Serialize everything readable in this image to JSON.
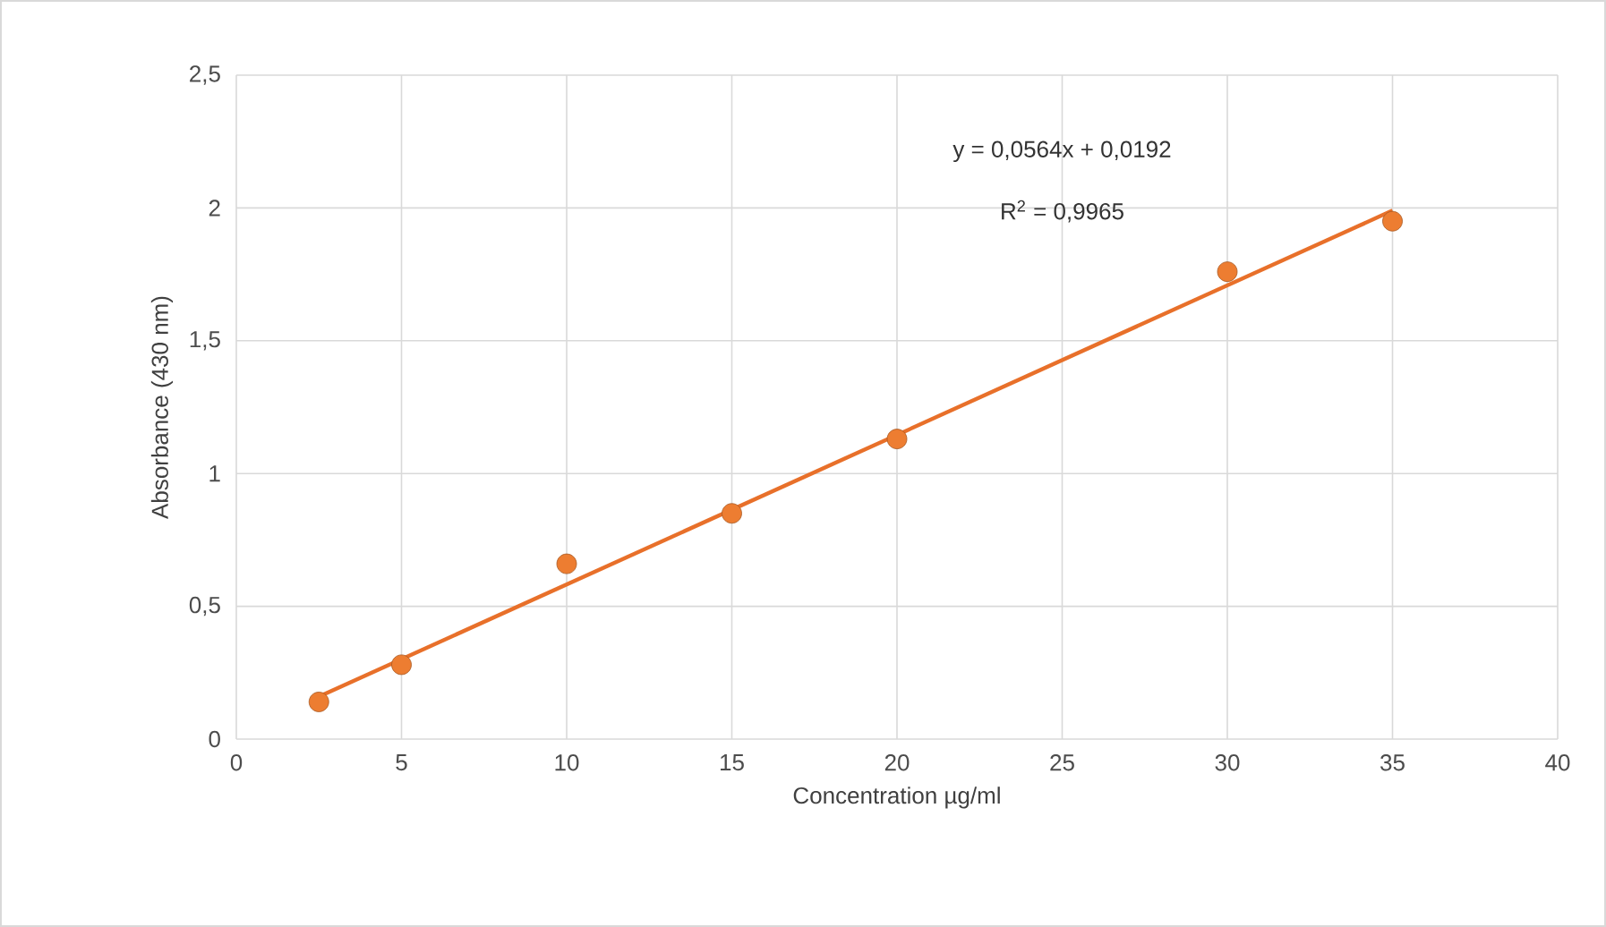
{
  "chart_data": {
    "type": "scatter",
    "xlabel": "Concentration µg/ml",
    "ylabel": "Absorbance (430 nm)",
    "xlim": [
      0,
      40
    ],
    "ylim": [
      0,
      2.5
    ],
    "xticks": [
      0,
      5,
      10,
      15,
      20,
      25,
      30,
      35,
      40
    ],
    "yticks": [
      0,
      {
        "value": 0.5,
        "label": "0,5"
      },
      1,
      {
        "value": 1.5,
        "label": "1,5"
      },
      2,
      {
        "value": 2.5,
        "label": "2,5"
      }
    ],
    "grid": true,
    "series": [
      {
        "color": "#ed7d31",
        "marker": "circle",
        "x": [
          2.5,
          5,
          10,
          15,
          20,
          30,
          35
        ],
        "values": [
          0.14,
          0.28,
          0.66,
          0.85,
          1.13,
          1.76,
          1.95
        ]
      },
      {
        "type": "line",
        "color": "#e8702a",
        "marker": "none",
        "line_style": "solid",
        "x": [
          2.5,
          35
        ],
        "values": [
          0.16,
          1.99
        ]
      }
    ],
    "annotations": [
      "y = 0,0564x + 0,0192",
      "R$^{2}$ = 0,9965"
    ]
  }
}
